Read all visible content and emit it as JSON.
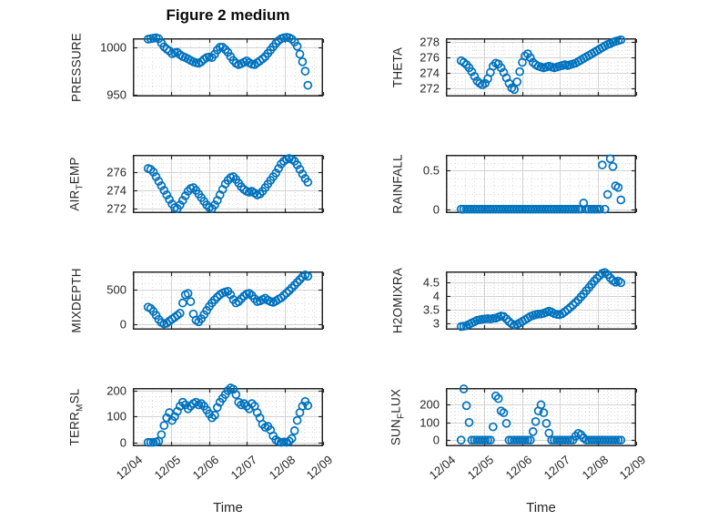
{
  "chart_data": {
    "type": "scatter",
    "title": "Figure 2 medium",
    "xlabel": "Time",
    "marker": "open-circle",
    "marker_color": "#0072BD",
    "grid": "major-and-dotted-minor",
    "xlim_days": [
      0,
      5
    ],
    "xticks_days": [
      0,
      1,
      2,
      3,
      4,
      5
    ],
    "xtick_labels": [
      "12/04",
      "12/05",
      "12/06",
      "12/07",
      "12/08",
      "12/09"
    ],
    "x_minor_step": 0.25,
    "x_days": [
      0.4,
      0.47,
      0.54,
      0.61,
      0.68,
      0.75,
      0.82,
      0.89,
      0.96,
      1.03,
      1.1,
      1.17,
      1.24,
      1.31,
      1.38,
      1.45,
      1.52,
      1.59,
      1.66,
      1.73,
      1.8,
      1.87,
      1.94,
      2.01,
      2.08,
      2.15,
      2.22,
      2.29,
      2.36,
      2.43,
      2.5,
      2.57,
      2.64,
      2.71,
      2.78,
      2.85,
      2.92,
      2.99,
      3.06,
      3.13,
      3.2,
      3.27,
      3.34,
      3.41,
      3.48,
      3.55,
      3.62,
      3.69,
      3.76,
      3.83,
      3.9,
      3.97,
      4.04,
      4.11,
      4.18,
      4.25,
      4.32,
      4.39,
      4.46,
      4.53,
      4.6
    ],
    "subplots": [
      {
        "name": "pressure",
        "ylabel_parts": [
          {
            "text": "PRESSURE",
            "sub": false
          }
        ],
        "yticks": [
          950,
          1000
        ],
        "ylim": [
          948,
          1010
        ],
        "y_minor_step": 10,
        "values": [
          1009,
          1009.5,
          1010,
          1010.5,
          1009.5,
          1005,
          1001,
          998.5,
          996.5,
          993.5,
          994.5,
          995,
          992.5,
          990.5,
          989.5,
          988,
          986.5,
          985,
          984,
          983.5,
          985,
          987.5,
          989.5,
          990,
          989.5,
          993,
          997.5,
          1000.5,
          1000.5,
          998,
          995,
          990.5,
          986.5,
          983.5,
          982,
          983,
          984.5,
          986,
          984,
          982.5,
          982,
          984,
          986,
          988,
          990.5,
          994,
          997.5,
          1001,
          1004.5,
          1007.5,
          1009.5,
          1010.5,
          1011,
          1010.5,
          1009,
          1006,
          1001.5,
          993,
          985,
          975,
          960
        ]
      },
      {
        "name": "theta",
        "ylabel_parts": [
          {
            "text": "THETA",
            "sub": false
          }
        ],
        "yticks": [
          272,
          274,
          276,
          278
        ],
        "ylim": [
          271,
          278.5
        ],
        "y_minor_step": 0.5,
        "values": [
          275.6,
          275.4,
          275.1,
          274.7,
          274.2,
          273.6,
          273.0,
          272.7,
          272.5,
          272.7,
          273.3,
          274.1,
          274.9,
          275.3,
          275.2,
          274.7,
          274.1,
          273.4,
          272.7,
          272.1,
          271.9,
          272.9,
          274.2,
          275.4,
          276.2,
          276.5,
          276.0,
          275.4,
          275.1,
          274.9,
          274.8,
          274.7,
          274.8,
          274.9,
          274.8,
          274.7,
          274.8,
          274.9,
          275.0,
          275.1,
          275.0,
          275.1,
          275.2,
          275.3,
          275.5,
          275.7,
          275.9,
          276.1,
          276.3,
          276.5,
          276.7,
          276.9,
          277.1,
          277.3,
          277.5,
          277.7,
          277.8,
          278.0,
          278.1,
          278.2,
          278.3
        ]
      },
      {
        "name": "air-temp",
        "ylabel_parts": [
          {
            "text": "AIR",
            "sub": false
          },
          {
            "text": "T",
            "sub": true
          },
          {
            "text": "EMP",
            "sub": false
          }
        ],
        "yticks": [
          272,
          274,
          276
        ],
        "ylim": [
          271.5,
          277.9
        ],
        "y_minor_step": 0.5,
        "values": [
          276.4,
          276.3,
          276.0,
          275.5,
          275.0,
          274.5,
          274.0,
          273.5,
          273.0,
          272.5,
          272.1,
          272.0,
          272.4,
          272.9,
          273.4,
          273.9,
          274.2,
          274.3,
          274.0,
          273.6,
          273.2,
          272.8,
          272.4,
          272.1,
          272.0,
          272.4,
          272.9,
          273.5,
          274.1,
          274.7,
          275.1,
          275.4,
          275.5,
          275.2,
          274.8,
          274.4,
          274.1,
          273.9,
          273.8,
          273.9,
          273.7,
          273.5,
          273.6,
          273.9,
          274.3,
          274.7,
          275.1,
          275.5,
          275.9,
          276.4,
          276.9,
          277.2,
          277.4,
          277.5,
          277.4,
          277.2,
          276.8,
          276.3,
          275.8,
          275.3,
          274.9
        ]
      },
      {
        "name": "rainfall",
        "ylabel_parts": [
          {
            "text": "RAINFALL",
            "sub": false
          }
        ],
        "yticks": [
          0,
          0.5
        ],
        "ylim": [
          -0.05,
          0.7
        ],
        "y_minor_step": 0.1,
        "values": [
          0,
          0,
          0,
          0,
          0,
          0,
          0,
          0,
          0,
          0,
          0,
          0,
          0,
          0,
          0,
          0,
          0,
          0,
          0,
          0,
          0,
          0,
          0,
          0,
          0,
          0,
          0,
          0,
          0,
          0,
          0,
          0,
          0,
          0,
          0,
          0,
          0,
          0,
          0,
          0,
          0,
          0,
          0,
          0,
          0,
          0,
          0.08,
          0,
          0,
          0,
          0,
          0,
          0,
          0.57,
          0,
          0.19,
          0.65,
          0.55,
          0.3,
          0.28,
          0.12
        ]
      },
      {
        "name": "mixdepth",
        "ylabel_parts": [
          {
            "text": "MIXDEPTH",
            "sub": false
          }
        ],
        "yticks": [
          0,
          500
        ],
        "ylim": [
          -80,
          770
        ],
        "y_minor_step": 100,
        "values": [
          250,
          230,
          185,
          130,
          70,
          25,
          5,
          15,
          45,
          75,
          100,
          130,
          160,
          310,
          430,
          450,
          330,
          150,
          60,
          35,
          80,
          140,
          200,
          260,
          310,
          355,
          395,
          430,
          455,
          470,
          480,
          430,
          360,
          310,
          330,
          370,
          410,
          440,
          450,
          420,
          370,
          330,
          340,
          360,
          380,
          350,
          330,
          320,
          340,
          365,
          385,
          420,
          455,
          490,
          530,
          570,
          610,
          650,
          690,
          720,
          700
        ]
      },
      {
        "name": "h2omixra",
        "ylabel_parts": [
          {
            "text": "H2OMIXRA",
            "sub": false
          }
        ],
        "yticks": [
          3,
          3.5,
          4,
          4.5
        ],
        "ylim": [
          2.75,
          4.92
        ],
        "y_minor_step": 0.1,
        "values": [
          2.87,
          2.88,
          2.9,
          2.95,
          3.0,
          3.05,
          3.1,
          3.12,
          3.14,
          3.15,
          3.16,
          3.15,
          3.17,
          3.18,
          3.22,
          3.26,
          3.24,
          3.15,
          3.05,
          2.97,
          2.92,
          2.95,
          3.0,
          3.06,
          3.12,
          3.18,
          3.24,
          3.28,
          3.31,
          3.33,
          3.34,
          3.36,
          3.4,
          3.44,
          3.4,
          3.35,
          3.32,
          3.31,
          3.35,
          3.42,
          3.5,
          3.58,
          3.67,
          3.76,
          3.86,
          3.97,
          4.08,
          4.2,
          4.32,
          4.44,
          4.56,
          4.66,
          4.76,
          4.85,
          4.88,
          4.8,
          4.68,
          4.58,
          4.52,
          4.56,
          4.5
        ]
      },
      {
        "name": "terr-msl",
        "ylabel_parts": [
          {
            "text": "TERR",
            "sub": false
          },
          {
            "text": "M",
            "sub": true
          },
          {
            "text": "SL",
            "sub": false
          }
        ],
        "yticks": [
          0,
          100,
          200
        ],
        "ylim": [
          -15,
          210
        ],
        "y_minor_step": 20,
        "values": [
          0,
          0,
          0,
          2,
          5,
          30,
          65,
          95,
          115,
          85,
          100,
          120,
          140,
          155,
          145,
          130,
          140,
          150,
          155,
          145,
          150,
          140,
          125,
          110,
          95,
          105,
          135,
          155,
          170,
          185,
          200,
          210,
          205,
          185,
          155,
          145,
          150,
          140,
          130,
          150,
          140,
          115,
          95,
          70,
          58,
          62,
          48,
          25,
          10,
          3,
          0,
          2,
          0,
          5,
          15,
          45,
          85,
          115,
          140,
          158,
          142
        ]
      },
      {
        "name": "sun-flux",
        "ylabel_parts": [
          {
            "text": "SUN",
            "sub": false
          },
          {
            "text": "F",
            "sub": true
          },
          {
            "text": "LUX",
            "sub": false
          }
        ],
        "yticks": [
          0,
          100,
          200
        ],
        "ylim": [
          -35,
          295
        ],
        "y_minor_step": 20,
        "values": [
          0,
          290,
          195,
          100,
          0,
          0,
          0,
          0,
          0,
          0,
          0,
          0,
          75,
          250,
          235,
          165,
          155,
          95,
          0,
          0,
          0,
          0,
          0,
          0,
          0,
          0,
          0,
          48,
          105,
          165,
          200,
          155,
          95,
          40,
          0,
          0,
          0,
          0,
          0,
          0,
          0,
          0,
          0,
          22,
          38,
          30,
          12,
          0,
          0,
          0,
          0,
          0,
          0,
          0,
          0,
          0,
          0,
          0,
          0,
          0,
          0
        ]
      }
    ],
    "colors": {
      "marker": "#0072BD",
      "axes_box": "#262626",
      "major_grid": "#d3d3d3",
      "minor_grid": "#dadada",
      "text": "#262626"
    }
  }
}
